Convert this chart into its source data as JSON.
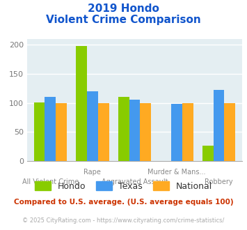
{
  "title_line1": "2019 Hondo",
  "title_line2": "Violent Crime Comparison",
  "categories": [
    "All Violent Crime",
    "Rape",
    "Aggravated Assault",
    "Murder & Mans...",
    "Robbery"
  ],
  "hondo": [
    101,
    198,
    111,
    0,
    27
  ],
  "texas": [
    110,
    120,
    106,
    98,
    122
  ],
  "national": [
    100,
    100,
    100,
    100,
    100
  ],
  "hondo_color": "#88cc00",
  "texas_color": "#4499ee",
  "national_color": "#ffaa22",
  "bg_color": "#e4eef2",
  "title_color": "#1155cc",
  "ylim": [
    0,
    210
  ],
  "yticks": [
    0,
    50,
    100,
    150,
    200
  ],
  "footnote1": "Compared to U.S. average. (U.S. average equals 100)",
  "footnote2": "© 2025 CityRating.com - https://www.cityrating.com/crime-statistics/",
  "footnote1_color": "#cc3300",
  "footnote2_color": "#aaaaaa",
  "footnote2_url_color": "#3399cc"
}
